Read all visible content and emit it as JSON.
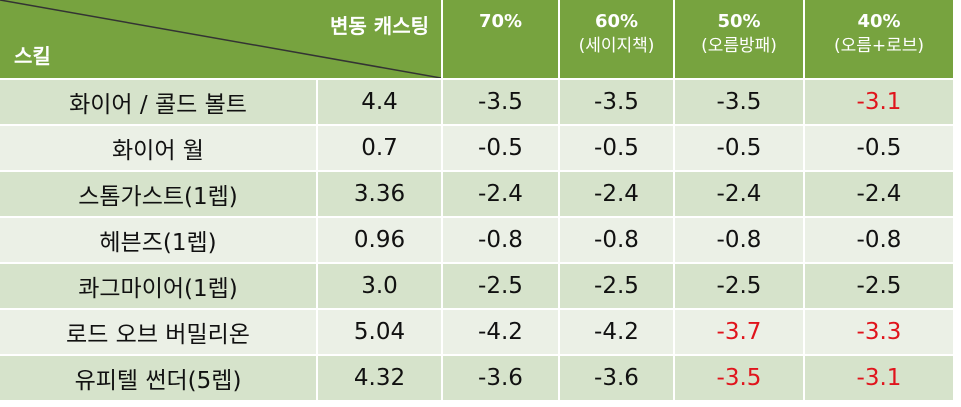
{
  "table": {
    "corner": {
      "top": "변동 캐스팅",
      "bottom": "스킬"
    },
    "columns": [
      {
        "label": "70%"
      },
      {
        "label": "60%",
        "note": "(세이지책)"
      },
      {
        "label": "50%",
        "note": "(오름방패)"
      },
      {
        "label": "40%",
        "note": "(오름+로브)"
      }
    ],
    "rows": [
      [
        "화이어 / 콜드 볼트",
        "4.4",
        "-3.5",
        "-3.5",
        "-3.5",
        "-3.1"
      ],
      [
        "화이어 월",
        "0.7",
        "-0.5",
        "-0.5",
        "-0.5",
        "-0.5"
      ],
      [
        "스톰가스트(1렙)",
        "3.36",
        "-2.4",
        "-2.4",
        "-2.4",
        "-2.4"
      ],
      [
        "헤븐즈(1렙)",
        "0.96",
        "-0.8",
        "-0.8",
        "-0.8",
        "-0.8"
      ],
      [
        "콰그마이어(1렙)",
        "3.0",
        "-2.5",
        "-2.5",
        "-2.5",
        "-2.5"
      ],
      [
        "로드 오브 버밀리온",
        "5.04",
        "-4.2",
        "-4.2",
        "-3.7",
        "-3.3"
      ],
      [
        "유피텔 썬더(5렙)",
        "4.32",
        "-3.6",
        "-3.6",
        "-3.5",
        "-3.1"
      ]
    ],
    "highlighted": [
      [
        0,
        5
      ],
      [
        5,
        4
      ],
      [
        5,
        5
      ],
      [
        6,
        4
      ],
      [
        6,
        5
      ]
    ]
  }
}
